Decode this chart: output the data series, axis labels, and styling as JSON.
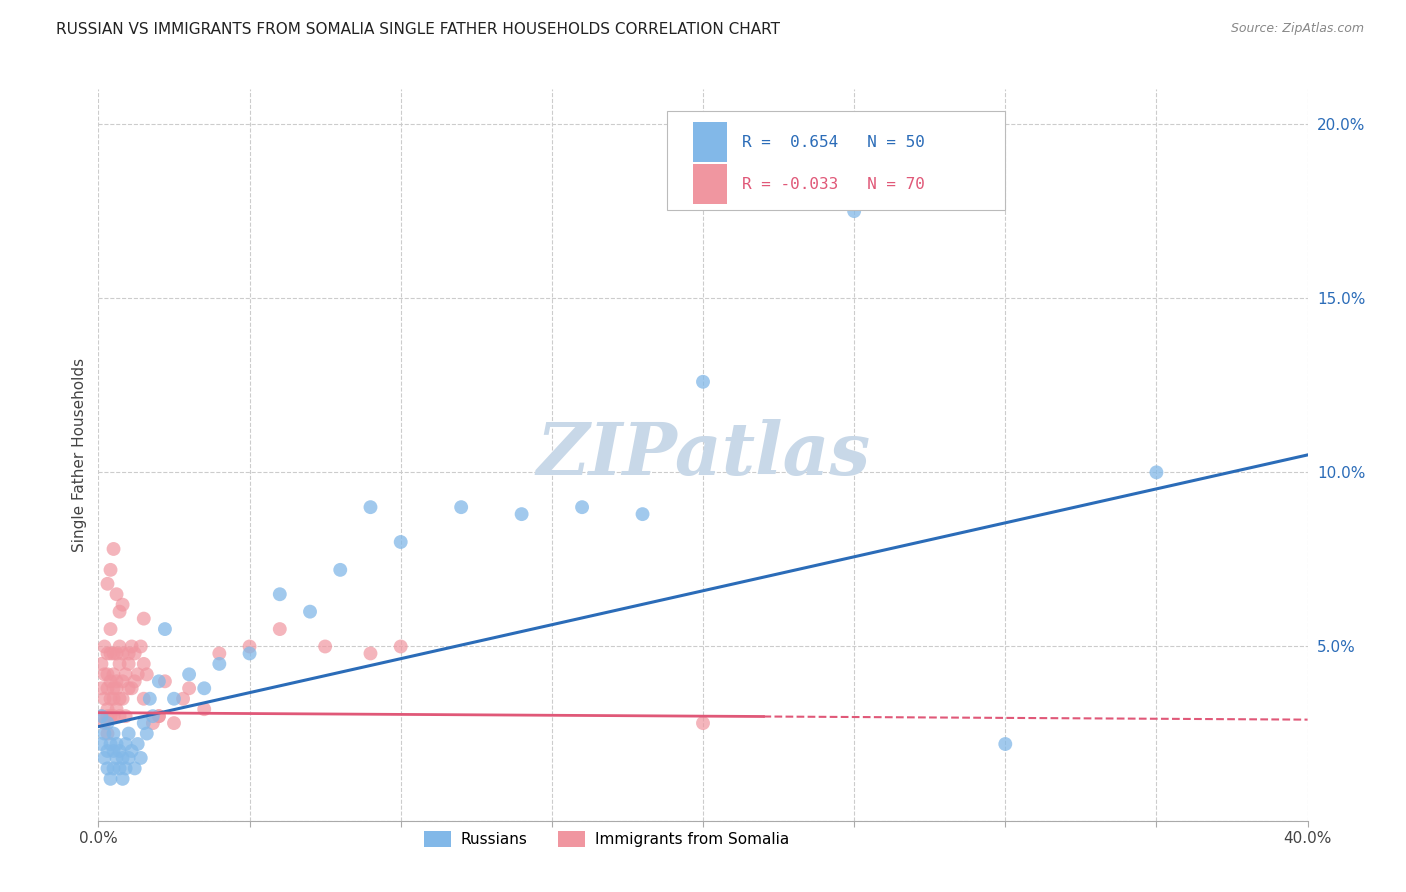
{
  "title": "RUSSIAN VS IMMIGRANTS FROM SOMALIA SINGLE FATHER HOUSEHOLDS CORRELATION CHART",
  "source": "Source: ZipAtlas.com",
  "ylabel": "Single Father Households",
  "xlim": [
    0.0,
    0.4
  ],
  "ylim": [
    0.0,
    0.21
  ],
  "xtick_vals": [
    0.0,
    0.05,
    0.1,
    0.15,
    0.2,
    0.25,
    0.3,
    0.35,
    0.4
  ],
  "ytick_vals": [
    0.0,
    0.05,
    0.1,
    0.15,
    0.2
  ],
  "legend_r1_text": "R =  0.654   N = 50",
  "legend_r2_text": "R = -0.033   N = 70",
  "legend_label1": "Russians",
  "legend_label2": "Immigrants from Somalia",
  "blue_color": "#82b8e8",
  "pink_color": "#f096a0",
  "blue_line_color": "#2b6cb8",
  "pink_line_color": "#e05878",
  "blue_text_color": "#2b6cb8",
  "pink_text_color": "#e05878",
  "ytick_color": "#2b6cb8",
  "watermark_color": "#c8d8e8",
  "background_color": "#ffffff",
  "grid_color": "#cccccc",
  "title_color": "#222222",
  "source_color": "#888888",
  "blue_line_x": [
    0.0,
    0.4
  ],
  "blue_line_y": [
    0.027,
    0.105
  ],
  "pink_line_x": [
    0.0,
    0.4
  ],
  "pink_line_y": [
    0.031,
    0.029
  ],
  "russians_x": [
    0.001,
    0.001,
    0.002,
    0.002,
    0.003,
    0.003,
    0.003,
    0.004,
    0.004,
    0.005,
    0.005,
    0.005,
    0.006,
    0.006,
    0.007,
    0.007,
    0.008,
    0.008,
    0.009,
    0.009,
    0.01,
    0.01,
    0.011,
    0.012,
    0.013,
    0.014,
    0.015,
    0.016,
    0.017,
    0.018,
    0.02,
    0.022,
    0.025,
    0.03,
    0.035,
    0.04,
    0.05,
    0.06,
    0.07,
    0.08,
    0.09,
    0.1,
    0.12,
    0.14,
    0.16,
    0.18,
    0.2,
    0.25,
    0.3,
    0.35
  ],
  "russians_y": [
    0.03,
    0.022,
    0.018,
    0.025,
    0.02,
    0.015,
    0.028,
    0.022,
    0.012,
    0.02,
    0.015,
    0.025,
    0.018,
    0.022,
    0.015,
    0.02,
    0.012,
    0.018,
    0.015,
    0.022,
    0.018,
    0.025,
    0.02,
    0.015,
    0.022,
    0.018,
    0.028,
    0.025,
    0.035,
    0.03,
    0.04,
    0.055,
    0.035,
    0.042,
    0.038,
    0.045,
    0.048,
    0.065,
    0.06,
    0.072,
    0.09,
    0.08,
    0.09,
    0.088,
    0.09,
    0.088,
    0.126,
    0.175,
    0.022,
    0.1
  ],
  "somalia_x": [
    0.001,
    0.001,
    0.001,
    0.002,
    0.002,
    0.002,
    0.002,
    0.003,
    0.003,
    0.003,
    0.003,
    0.003,
    0.003,
    0.004,
    0.004,
    0.004,
    0.004,
    0.004,
    0.005,
    0.005,
    0.005,
    0.005,
    0.005,
    0.006,
    0.006,
    0.006,
    0.006,
    0.007,
    0.007,
    0.007,
    0.007,
    0.008,
    0.008,
    0.008,
    0.009,
    0.009,
    0.01,
    0.01,
    0.011,
    0.011,
    0.012,
    0.012,
    0.013,
    0.014,
    0.015,
    0.015,
    0.016,
    0.018,
    0.02,
    0.022,
    0.025,
    0.028,
    0.03,
    0.035,
    0.04,
    0.05,
    0.06,
    0.075,
    0.09,
    0.1,
    0.003,
    0.004,
    0.005,
    0.006,
    0.007,
    0.008,
    0.01,
    0.015,
    0.02,
    0.2
  ],
  "somalia_y": [
    0.03,
    0.038,
    0.045,
    0.028,
    0.035,
    0.042,
    0.05,
    0.03,
    0.038,
    0.042,
    0.048,
    0.032,
    0.025,
    0.035,
    0.04,
    0.03,
    0.048,
    0.055,
    0.038,
    0.042,
    0.03,
    0.048,
    0.035,
    0.04,
    0.032,
    0.048,
    0.038,
    0.045,
    0.035,
    0.05,
    0.03,
    0.04,
    0.048,
    0.035,
    0.042,
    0.03,
    0.045,
    0.038,
    0.05,
    0.038,
    0.048,
    0.04,
    0.042,
    0.05,
    0.058,
    0.035,
    0.042,
    0.028,
    0.03,
    0.04,
    0.028,
    0.035,
    0.038,
    0.032,
    0.048,
    0.05,
    0.055,
    0.05,
    0.048,
    0.05,
    0.068,
    0.072,
    0.078,
    0.065,
    0.06,
    0.062,
    0.048,
    0.045,
    0.03,
    0.028
  ]
}
